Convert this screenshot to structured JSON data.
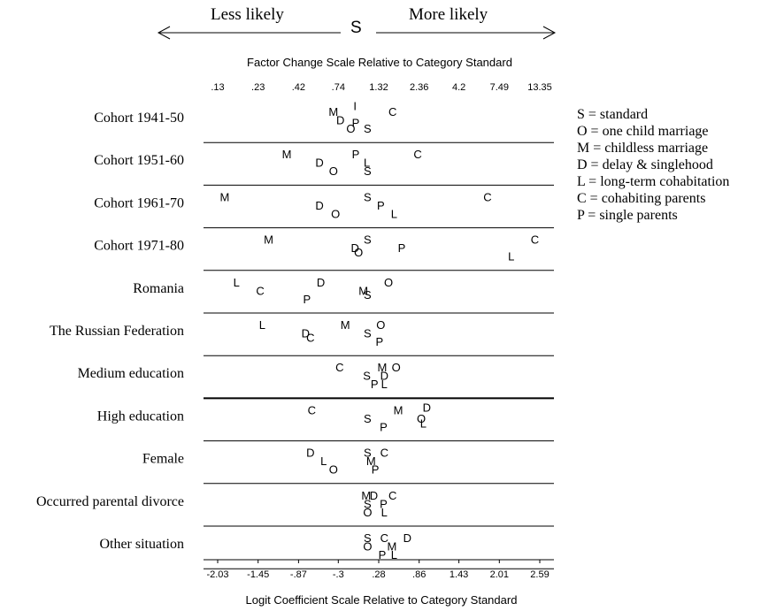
{
  "chart_data": {
    "type": "scatter",
    "direction_left": "Less likely",
    "direction_right": "More likely",
    "standard_marker": "S",
    "top_axis_title": "Factor Change Scale Relative to Category Standard",
    "bottom_axis_title": "Logit Coefficient Scale Relative to Category Standard",
    "top_ticks": [
      ".13",
      ".23",
      ".42",
      ".74",
      "1.32",
      "2.36",
      "4.2",
      "7.49",
      "13.35"
    ],
    "bottom_ticks": [
      {
        "label": "-2.03",
        "value": -2.03
      },
      {
        "label": "-1.45",
        "value": -1.45
      },
      {
        "label": "-.87",
        "value": -0.87
      },
      {
        "label": "-.3",
        "value": -0.3
      },
      {
        "label": ".28",
        "value": 0.28
      },
      {
        "label": ".86",
        "value": 0.86
      },
      {
        "label": "1.43",
        "value": 1.43
      },
      {
        "label": "2.01",
        "value": 2.01
      },
      {
        "label": "2.59",
        "value": 2.59
      }
    ],
    "xlim": [
      -2.03,
      2.59
    ],
    "legend": [
      "S = standard",
      "O = one child marriage",
      "M = childless marriage",
      "D = delay & singlehood",
      "L = long-term cohabitation",
      "C = cohabiting parents",
      "P = single parents"
    ],
    "rows": [
      {
        "label": "Cohort  1941-50",
        "points": [
          {
            "letter": "M",
            "x": -0.37,
            "level": 0
          },
          {
            "letter": "D",
            "x": -0.27,
            "level": 1
          },
          {
            "letter": "I",
            "x": -0.06,
            "level": -0.7
          },
          {
            "letter": "O",
            "x": -0.12,
            "level": 2
          },
          {
            "letter": "P",
            "x": -0.05,
            "level": 1.3
          },
          {
            "letter": "S",
            "x": 0.12,
            "level": 2
          },
          {
            "letter": "C",
            "x": 0.48,
            "level": 0
          }
        ]
      },
      {
        "label": "Cohort  1951-60",
        "points": [
          {
            "letter": "M",
            "x": -1.04,
            "level": 0
          },
          {
            "letter": "D",
            "x": -0.57,
            "level": 1
          },
          {
            "letter": "O",
            "x": -0.37,
            "level": 2
          },
          {
            "letter": "P",
            "x": -0.05,
            "level": 0
          },
          {
            "letter": "L",
            "x": 0.11,
            "level": 1
          },
          {
            "letter": "S",
            "x": 0.12,
            "level": 2
          },
          {
            "letter": "C",
            "x": 0.84,
            "level": 0
          }
        ]
      },
      {
        "label": "Cohort  1961-70",
        "points": [
          {
            "letter": "M",
            "x": -1.93,
            "level": 0
          },
          {
            "letter": "D",
            "x": -0.57,
            "level": 1
          },
          {
            "letter": "O",
            "x": -0.34,
            "level": 2
          },
          {
            "letter": "S",
            "x": 0.12,
            "level": 0
          },
          {
            "letter": "P",
            "x": 0.31,
            "level": 1
          },
          {
            "letter": "L",
            "x": 0.5,
            "level": 2
          },
          {
            "letter": "C",
            "x": 1.84,
            "level": 0
          }
        ]
      },
      {
        "label": "Cohort  1971-80",
        "points": [
          {
            "letter": "M",
            "x": -1.3,
            "level": 0
          },
          {
            "letter": "S",
            "x": 0.12,
            "level": 0
          },
          {
            "letter": "D",
            "x": -0.06,
            "level": 1
          },
          {
            "letter": "O",
            "x": -0.01,
            "level": 1.5
          },
          {
            "letter": "P",
            "x": 0.61,
            "level": 1
          },
          {
            "letter": "L",
            "x": 2.18,
            "level": 2
          },
          {
            "letter": "C",
            "x": 2.52,
            "level": 0
          }
        ]
      },
      {
        "label": "Romania",
        "points": [
          {
            "letter": "L",
            "x": -1.76,
            "level": 0
          },
          {
            "letter": "C",
            "x": -1.42,
            "level": 1
          },
          {
            "letter": "P",
            "x": -0.75,
            "level": 2
          },
          {
            "letter": "D",
            "x": -0.55,
            "level": 0
          },
          {
            "letter": "M",
            "x": 0.06,
            "level": 1
          },
          {
            "letter": "S",
            "x": 0.12,
            "level": 1.5
          },
          {
            "letter": "O",
            "x": 0.42,
            "level": 0
          }
        ]
      },
      {
        "label": "The Russian Federation",
        "points": [
          {
            "letter": "L",
            "x": -1.39,
            "level": 0
          },
          {
            "letter": "D",
            "x": -0.77,
            "level": 1
          },
          {
            "letter": "C",
            "x": -0.7,
            "level": 1.5
          },
          {
            "letter": "M",
            "x": -0.2,
            "level": 0
          },
          {
            "letter": "S",
            "x": 0.12,
            "level": 1
          },
          {
            "letter": "O",
            "x": 0.31,
            "level": 0
          },
          {
            "letter": "P",
            "x": 0.29,
            "level": 2
          }
        ]
      },
      {
        "label": "Medium education",
        "points": [
          {
            "letter": "C",
            "x": -0.28,
            "level": 0
          },
          {
            "letter": "M",
            "x": 0.33,
            "level": 0
          },
          {
            "letter": "O",
            "x": 0.53,
            "level": 0
          },
          {
            "letter": "S",
            "x": 0.11,
            "level": 1
          },
          {
            "letter": "D",
            "x": 0.36,
            "level": 1
          },
          {
            "letter": "P",
            "x": 0.22,
            "level": 2
          },
          {
            "letter": "L",
            "x": 0.36,
            "level": 2
          }
        ]
      },
      {
        "label": "High education",
        "points": [
          {
            "letter": "C",
            "x": -0.68,
            "level": 0
          },
          {
            "letter": "M",
            "x": 0.56,
            "level": 0
          },
          {
            "letter": "D",
            "x": 0.97,
            "level": -0.3
          },
          {
            "letter": "S",
            "x": 0.12,
            "level": 1
          },
          {
            "letter": "O",
            "x": 0.89,
            "level": 1
          },
          {
            "letter": "L",
            "x": 0.92,
            "level": 1.6
          },
          {
            "letter": "P",
            "x": 0.35,
            "level": 2
          }
        ]
      },
      {
        "label": "Female",
        "points": [
          {
            "letter": "D",
            "x": -0.7,
            "level": 0
          },
          {
            "letter": "S",
            "x": 0.12,
            "level": 0
          },
          {
            "letter": "C",
            "x": 0.36,
            "level": 0
          },
          {
            "letter": "L",
            "x": -0.51,
            "level": 1
          },
          {
            "letter": "O",
            "x": -0.37,
            "level": 2
          },
          {
            "letter": "M",
            "x": 0.17,
            "level": 1
          },
          {
            "letter": "P",
            "x": 0.23,
            "level": 2
          }
        ]
      },
      {
        "label": "Occurred parental divorce",
        "points": [
          {
            "letter": "M",
            "x": 0.1,
            "level": 0
          },
          {
            "letter": "D",
            "x": 0.21,
            "level": 0
          },
          {
            "letter": "C",
            "x": 0.48,
            "level": 0
          },
          {
            "letter": "S",
            "x": 0.12,
            "level": 1
          },
          {
            "letter": "P",
            "x": 0.35,
            "level": 1
          },
          {
            "letter": "O",
            "x": 0.12,
            "level": 2
          },
          {
            "letter": "L",
            "x": 0.36,
            "level": 2
          }
        ]
      },
      {
        "label": "Other situation",
        "points": [
          {
            "letter": "S",
            "x": 0.12,
            "level": 0
          },
          {
            "letter": "C",
            "x": 0.36,
            "level": 0
          },
          {
            "letter": "D",
            "x": 0.69,
            "level": 0
          },
          {
            "letter": "O",
            "x": 0.12,
            "level": 1
          },
          {
            "letter": "M",
            "x": 0.47,
            "level": 1
          },
          {
            "letter": "P",
            "x": 0.33,
            "level": 2
          },
          {
            "letter": "L",
            "x": 0.5,
            "level": 2
          }
        ]
      }
    ]
  }
}
